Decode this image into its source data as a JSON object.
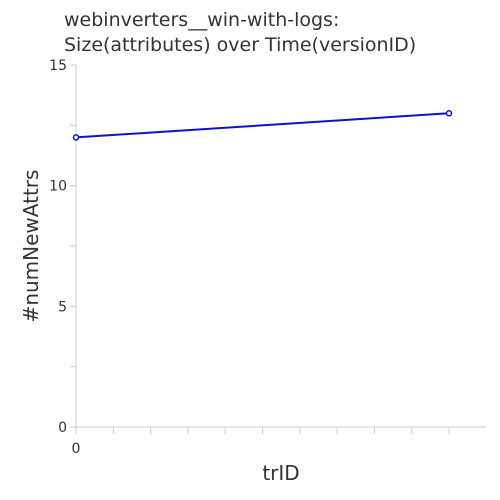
{
  "chart_data": {
    "type": "line",
    "title_lines": [
      "webinverters__win-with-logs:",
      "Size(attributes) over Time(versionID)"
    ],
    "xlabel": "trID",
    "ylabel": "#numNewAttrs",
    "xlim": [
      0,
      10
    ],
    "ylim": [
      0,
      15
    ],
    "x_tick_labels": [
      "0"
    ],
    "y_tick_labels": [
      "0",
      "5",
      "10",
      "15"
    ],
    "series": [
      {
        "x": [
          0,
          10
        ],
        "y": [
          12,
          13
        ],
        "color": "#1111cc"
      }
    ],
    "grid": false
  }
}
